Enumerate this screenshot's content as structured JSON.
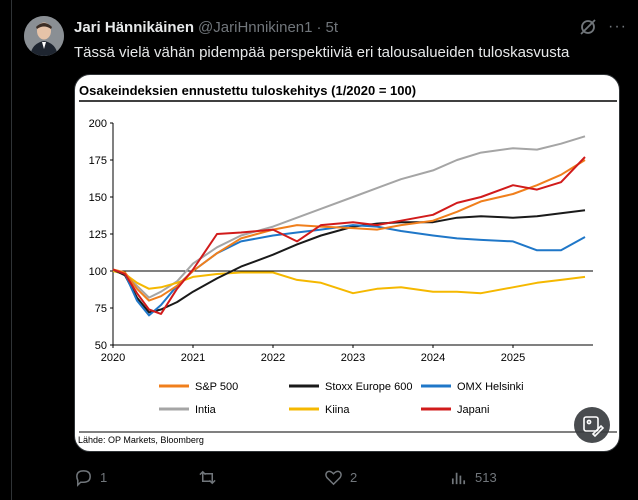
{
  "author": {
    "name": "Jari Hännikäinen",
    "handle": "@JariHnnikinen1",
    "separator": "·",
    "time": "5t"
  },
  "tweet_text": "Tässä vielä vähän pidempää perspektiiviä eri talousalueiden tuloskasvusta",
  "more_label": "···",
  "icons": {
    "grok": "grok-icon",
    "more": "more-icon",
    "edit": "edit-image-icon",
    "reply": "reply-icon",
    "retweet": "retweet-icon",
    "like": "like-icon",
    "views": "views-icon"
  },
  "actions": {
    "reply_count": "1",
    "retweet_count": "",
    "like_count": "2",
    "views_count": "513"
  },
  "media": {
    "source_note": "Lähde: OP Markets, Bloomberg"
  },
  "chart_data": {
    "type": "line",
    "title": "Osakeindeksien ennustettu tuloskehitys  (1/2020 = 100)",
    "xlabel": "",
    "ylabel": "",
    "x_ticks": [
      "2020",
      "2021",
      "2022",
      "2023",
      "2024",
      "2025"
    ],
    "y_ticks": [
      "50",
      "75",
      "100",
      "125",
      "150",
      "175",
      "200"
    ],
    "xlim": [
      2020.0,
      2026.0
    ],
    "ylim": [
      50,
      200
    ],
    "reference_line": 100,
    "grid": false,
    "legend_position": "bottom",
    "series": [
      {
        "name": "S&P 500",
        "color": "#f07f1c",
        "x": [
          2020.0,
          2020.15,
          2020.3,
          2020.45,
          2020.6,
          2020.8,
          2021.0,
          2021.3,
          2021.6,
          2022.0,
          2022.3,
          2022.6,
          2023.0,
          2023.3,
          2023.6,
          2024.0,
          2024.3,
          2024.6,
          2025.0,
          2025.3,
          2025.6,
          2025.9
        ],
        "values": [
          101,
          99,
          88,
          80,
          83,
          90,
          100,
          112,
          122,
          128,
          131,
          130,
          129,
          128,
          131,
          134,
          140,
          147,
          152,
          158,
          165,
          175
        ]
      },
      {
        "name": "Stoxx Europe 600",
        "color": "#1a1a1a",
        "x": [
          2020.0,
          2020.15,
          2020.3,
          2020.45,
          2020.6,
          2020.8,
          2021.0,
          2021.3,
          2021.6,
          2022.0,
          2022.3,
          2022.6,
          2023.0,
          2023.3,
          2023.6,
          2024.0,
          2024.3,
          2024.6,
          2025.0,
          2025.3,
          2025.6,
          2025.9
        ],
        "values": [
          101,
          97,
          82,
          72,
          74,
          79,
          86,
          95,
          103,
          111,
          118,
          124,
          130,
          132,
          133,
          133,
          136,
          137,
          136,
          137,
          139,
          141
        ]
      },
      {
        "name": "OMX Helsinki",
        "color": "#1f77c8",
        "x": [
          2020.0,
          2020.15,
          2020.3,
          2020.45,
          2020.6,
          2020.8,
          2021.0,
          2021.3,
          2021.6,
          2022.0,
          2022.3,
          2022.6,
          2023.0,
          2023.3,
          2023.6,
          2024.0,
          2024.3,
          2024.6,
          2025.0,
          2025.3,
          2025.6,
          2025.9
        ],
        "values": [
          101,
          98,
          80,
          70,
          77,
          90,
          100,
          112,
          120,
          124,
          126,
          128,
          131,
          130,
          127,
          124,
          122,
          121,
          120,
          114,
          114,
          123
        ]
      },
      {
        "name": "Intia",
        "color": "#a5a5a5",
        "x": [
          2020.0,
          2020.15,
          2020.3,
          2020.45,
          2020.6,
          2020.8,
          2021.0,
          2021.3,
          2021.6,
          2022.0,
          2022.3,
          2022.6,
          2023.0,
          2023.3,
          2023.6,
          2024.0,
          2024.3,
          2024.6,
          2025.0,
          2025.3,
          2025.6,
          2025.9
        ],
        "values": [
          100,
          98,
          90,
          82,
          86,
          93,
          105,
          116,
          124,
          130,
          136,
          142,
          150,
          156,
          162,
          168,
          175,
          180,
          183,
          182,
          186,
          191
        ]
      },
      {
        "name": "Kiina",
        "color": "#f5b800",
        "x": [
          2020.0,
          2020.15,
          2020.3,
          2020.45,
          2020.6,
          2020.8,
          2021.0,
          2021.3,
          2021.6,
          2022.0,
          2022.3,
          2022.6,
          2023.0,
          2023.3,
          2023.6,
          2024.0,
          2024.3,
          2024.6,
          2025.0,
          2025.3,
          2025.6,
          2025.9
        ],
        "values": [
          100,
          98,
          92,
          88,
          89,
          92,
          96,
          98,
          99,
          99,
          94,
          92,
          85,
          88,
          89,
          86,
          86,
          85,
          89,
          92,
          94,
          96
        ]
      },
      {
        "name": "Japani",
        "color": "#d11b1b",
        "x": [
          2020.0,
          2020.15,
          2020.3,
          2020.45,
          2020.6,
          2020.8,
          2021.0,
          2021.3,
          2021.6,
          2022.0,
          2022.3,
          2022.6,
          2023.0,
          2023.3,
          2023.6,
          2024.0,
          2024.3,
          2024.6,
          2025.0,
          2025.3,
          2025.6,
          2025.9
        ],
        "values": [
          101,
          98,
          85,
          74,
          71,
          88,
          101,
          125,
          126,
          128,
          120,
          131,
          133,
          131,
          134,
          138,
          146,
          150,
          158,
          155,
          160,
          177
        ]
      }
    ]
  }
}
